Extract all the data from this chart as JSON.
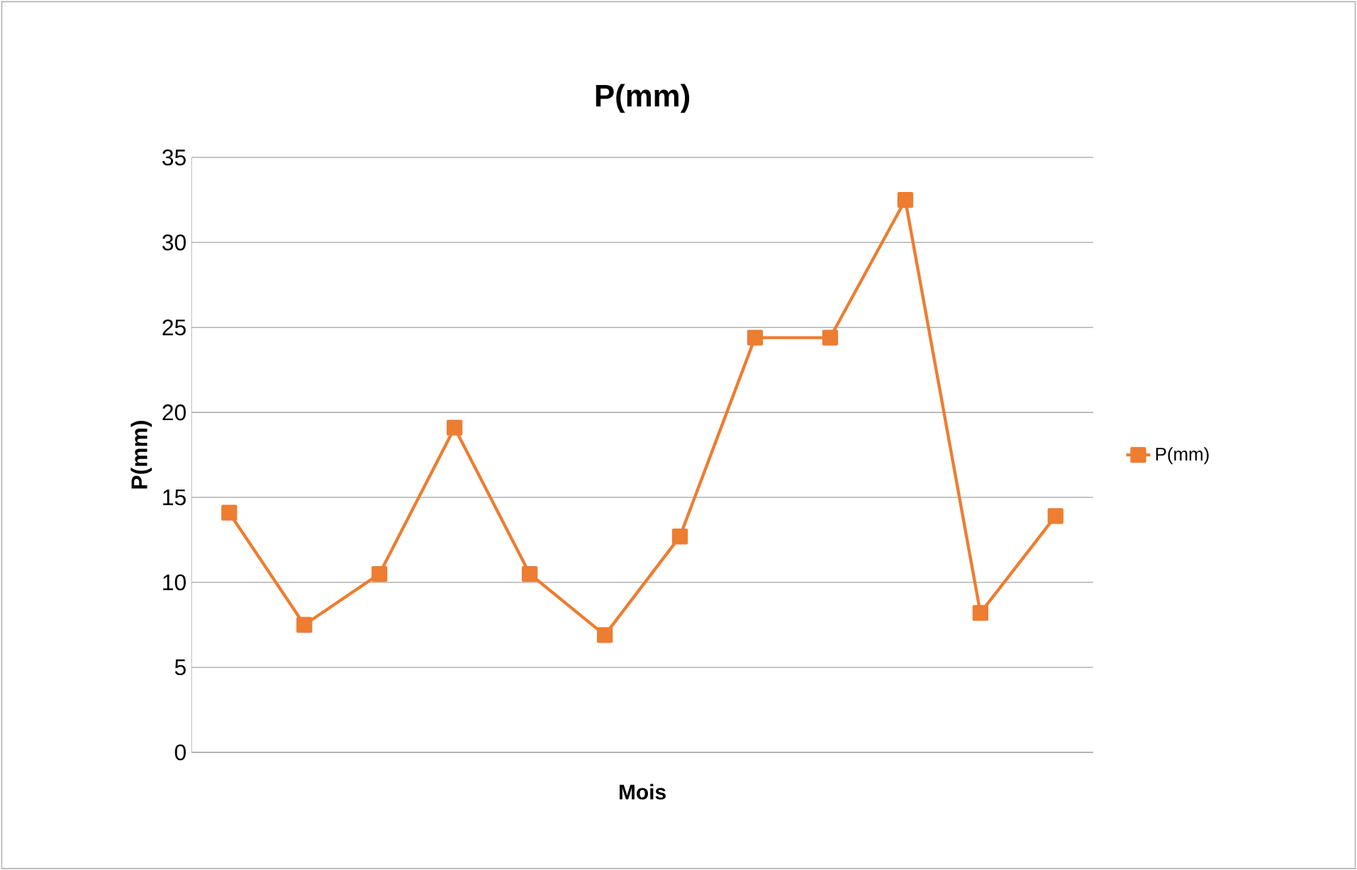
{
  "chart_data": {
    "type": "line",
    "title": "P(mm)",
    "xlabel": "Mois",
    "ylabel": "P(mm)",
    "categories": [
      null,
      null,
      null,
      null,
      null,
      null,
      null,
      null,
      null,
      null,
      null,
      null
    ],
    "series": [
      {
        "name": "P(mm)",
        "color": "#ed7d31",
        "values": [
          14.1,
          7.5,
          10.5,
          19.1,
          10.5,
          6.9,
          12.7,
          24.4,
          24.4,
          32.5,
          8.2,
          13.9
        ]
      }
    ],
    "ylim": [
      0,
      35
    ],
    "yticks": [
      0,
      5,
      10,
      15,
      20,
      25,
      30,
      35
    ],
    "grid": "y",
    "legend": "right",
    "marker": "square",
    "line_style": "solid"
  }
}
